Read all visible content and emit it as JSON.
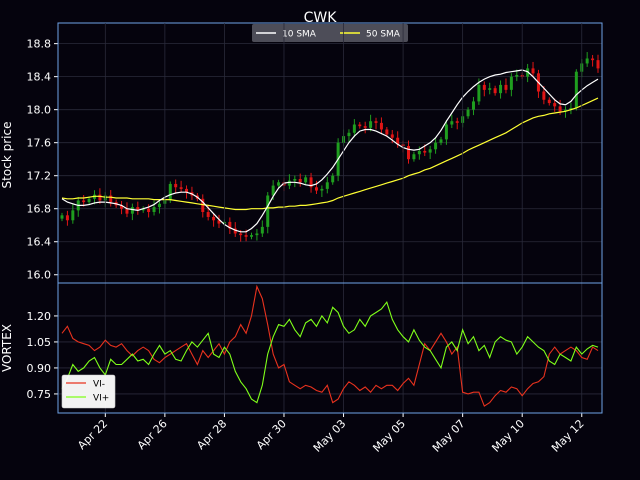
{
  "chart_data": [
    {
      "type": "candlestick",
      "title": "CWK",
      "ylabel": "Stock price",
      "ylim": [
        15.9,
        19.05
      ],
      "yticks": [
        "16.0",
        "16.4",
        "16.8",
        "17.2",
        "17.6",
        "18.0",
        "18.4",
        "18.8"
      ],
      "ytick_values": [
        16.0,
        16.4,
        16.8,
        17.2,
        17.6,
        18.0,
        18.4,
        18.8
      ],
      "legend": {
        "placement": "top-center",
        "entries": [
          {
            "label": "10 SMA",
            "color": "#ffffff"
          },
          {
            "label": "50 SMA",
            "color": "#ffff33"
          }
        ]
      },
      "colors": {
        "up": "#1f9e1f",
        "down": "#e01515",
        "background": "#05030d",
        "grid": "#2a2a3a",
        "frame": "#6fa3e6"
      },
      "close": [
        16.72,
        16.66,
        16.78,
        16.9,
        16.88,
        16.92,
        16.97,
        16.9,
        16.96,
        16.88,
        16.84,
        16.8,
        16.74,
        16.82,
        16.78,
        16.8,
        16.76,
        16.82,
        16.86,
        16.9,
        17.1,
        17.06,
        17.04,
        17.0,
        16.96,
        16.92,
        16.76,
        16.7,
        16.66,
        16.62,
        16.64,
        16.56,
        16.5,
        16.48,
        16.46,
        16.48,
        16.5,
        16.58,
        16.96,
        17.08,
        17.12,
        17.08,
        17.14,
        17.16,
        17.12,
        17.18,
        17.06,
        17.02,
        17.04,
        17.12,
        17.2,
        17.6,
        17.68,
        17.72,
        17.82,
        17.8,
        17.78,
        17.86,
        17.84,
        17.76,
        17.7,
        17.66,
        17.58,
        17.56,
        17.4,
        17.46,
        17.5,
        17.48,
        17.52,
        17.6,
        17.64,
        17.82,
        17.86,
        17.84,
        17.92,
        18.0,
        18.1,
        18.3,
        18.24,
        18.26,
        18.2,
        18.3,
        18.24,
        18.4,
        18.42,
        18.4,
        18.5,
        18.44,
        18.22,
        18.12,
        18.08,
        18.04,
        17.98,
        18.0,
        18.02,
        18.46,
        18.56,
        18.62,
        18.6,
        18.5
      ],
      "sma10": [
        16.92,
        16.88,
        16.86,
        16.84,
        16.84,
        16.85,
        16.87,
        16.88,
        16.88,
        16.87,
        16.86,
        16.84,
        16.8,
        16.79,
        16.78,
        16.8,
        16.82,
        16.85,
        16.9,
        16.94,
        16.97,
        16.99,
        17.0,
        17.0,
        16.98,
        16.94,
        16.88,
        16.81,
        16.74,
        16.67,
        16.61,
        16.57,
        16.54,
        16.52,
        16.52,
        16.56,
        16.62,
        16.72,
        16.83,
        16.95,
        17.05,
        17.11,
        17.12,
        17.12,
        17.11,
        17.09,
        17.08,
        17.1,
        17.15,
        17.22,
        17.3,
        17.4,
        17.5,
        17.6,
        17.68,
        17.74,
        17.76,
        17.76,
        17.74,
        17.71,
        17.68,
        17.63,
        17.58,
        17.54,
        17.52,
        17.51,
        17.52,
        17.56,
        17.6,
        17.66,
        17.75,
        17.86,
        17.96,
        18.06,
        18.15,
        18.22,
        18.28,
        18.33,
        18.37,
        18.4,
        18.42,
        18.43,
        18.45,
        18.46,
        18.47,
        18.48,
        18.46,
        18.4,
        18.33,
        18.26,
        18.19,
        18.12,
        18.07,
        18.06,
        18.1,
        18.18,
        18.24,
        18.29,
        18.33,
        18.37
      ],
      "sma50": [
        16.93,
        16.92,
        16.92,
        16.93,
        16.93,
        16.94,
        16.95,
        16.95,
        16.94,
        16.94,
        16.93,
        16.93,
        16.93,
        16.92,
        16.92,
        16.92,
        16.92,
        16.91,
        16.91,
        16.91,
        16.91,
        16.9,
        16.89,
        16.88,
        16.87,
        16.86,
        16.85,
        16.84,
        16.83,
        16.82,
        16.81,
        16.8,
        16.79,
        16.79,
        16.79,
        16.8,
        16.8,
        16.8,
        16.81,
        16.81,
        16.82,
        16.82,
        16.83,
        16.83,
        16.84,
        16.84,
        16.85,
        16.86,
        16.87,
        16.88,
        16.9,
        16.93,
        16.95,
        16.97,
        16.99,
        17.01,
        17.03,
        17.05,
        17.07,
        17.09,
        17.11,
        17.13,
        17.15,
        17.17,
        17.2,
        17.22,
        17.24,
        17.27,
        17.29,
        17.32,
        17.35,
        17.38,
        17.41,
        17.44,
        17.47,
        17.51,
        17.54,
        17.57,
        17.6,
        17.63,
        17.66,
        17.69,
        17.72,
        17.76,
        17.8,
        17.84,
        17.87,
        17.9,
        17.92,
        17.93,
        17.95,
        17.96,
        17.97,
        17.98,
        18.0,
        18.02,
        18.05,
        18.08,
        18.11,
        18.14
      ]
    },
    {
      "type": "line",
      "ylabel": "VORTEX",
      "ylim": [
        0.64,
        1.39
      ],
      "yticks": [
        "0.75",
        "0.90",
        "1.05",
        "1.20"
      ],
      "ytick_values": [
        0.75,
        0.9,
        1.05,
        1.2
      ],
      "xtick_labels": [
        "Apr 22",
        "Apr 26",
        "Apr 28",
        "Apr 30",
        "May 03",
        "May 05",
        "May 07",
        "May 10",
        "May 12"
      ],
      "xtick_index": [
        8,
        19,
        30,
        41,
        52,
        63,
        74,
        85,
        96
      ],
      "legend": {
        "placement": "lower-left",
        "entries": [
          {
            "label": "VI-",
            "color": "#e8321e"
          },
          {
            "label": "VI+",
            "color": "#7fff1a"
          }
        ]
      },
      "series": [
        {
          "name": "VI-",
          "values": [
            1.1,
            1.14,
            1.07,
            1.05,
            1.04,
            1.03,
            1.0,
            1.02,
            1.06,
            1.03,
            1.02,
            1.04,
            1.0,
            0.97,
            1.0,
            1.02,
            1.0,
            0.95,
            0.93,
            0.96,
            0.98,
            1.0,
            1.02,
            1.04,
            0.98,
            0.92,
            1.0,
            0.96,
            1.0,
            1.04,
            0.98,
            1.05,
            1.08,
            1.15,
            1.1,
            1.2,
            1.37,
            1.3,
            1.15,
            0.98,
            0.9,
            0.92,
            0.82,
            0.8,
            0.78,
            0.8,
            0.79,
            0.77,
            0.76,
            0.8,
            0.7,
            0.72,
            0.78,
            0.82,
            0.8,
            0.77,
            0.79,
            0.76,
            0.8,
            0.78,
            0.8,
            0.8,
            0.77,
            0.81,
            0.84,
            0.8,
            0.92,
            1.04,
            1.0,
            1.05,
            1.1,
            1.05,
            0.98,
            1.02,
            0.76,
            0.75,
            0.76,
            0.76,
            0.68,
            0.7,
            0.74,
            0.77,
            0.76,
            0.79,
            0.78,
            0.74,
            0.78,
            0.81,
            0.82,
            0.85,
            0.98,
            1.02,
            0.98,
            1.0,
            1.02,
            1.0,
            0.96,
            0.95,
            1.02,
            1.0
          ]
        },
        {
          "name": "VI+",
          "values": [
            0.78,
            0.84,
            0.92,
            0.88,
            0.9,
            0.94,
            0.96,
            0.9,
            0.86,
            0.95,
            0.92,
            0.92,
            0.95,
            0.98,
            0.94,
            0.95,
            0.92,
            0.98,
            1.03,
            0.98,
            1.0,
            0.95,
            0.94,
            1.0,
            1.05,
            1.02,
            1.06,
            1.1,
            0.98,
            0.96,
            1.02,
            0.98,
            0.88,
            0.82,
            0.78,
            0.72,
            0.7,
            0.8,
            0.98,
            1.08,
            1.15,
            1.14,
            1.18,
            1.12,
            1.08,
            1.16,
            1.18,
            1.14,
            1.2,
            1.16,
            1.25,
            1.22,
            1.14,
            1.1,
            1.12,
            1.18,
            1.14,
            1.2,
            1.22,
            1.24,
            1.28,
            1.18,
            1.12,
            1.08,
            1.05,
            1.12,
            1.06,
            1.02,
            1.0,
            0.95,
            0.9,
            1.02,
            1.05,
            1.0,
            1.12,
            1.04,
            1.08,
            1.0,
            1.03,
            0.96,
            1.05,
            1.08,
            1.06,
            1.05,
            0.98,
            1.02,
            1.08,
            1.05,
            1.02,
            1.0,
            0.94,
            0.92,
            0.98,
            0.96,
            0.94,
            1.02,
            0.98,
            1.01,
            1.03,
            1.02
          ]
        }
      ]
    }
  ]
}
